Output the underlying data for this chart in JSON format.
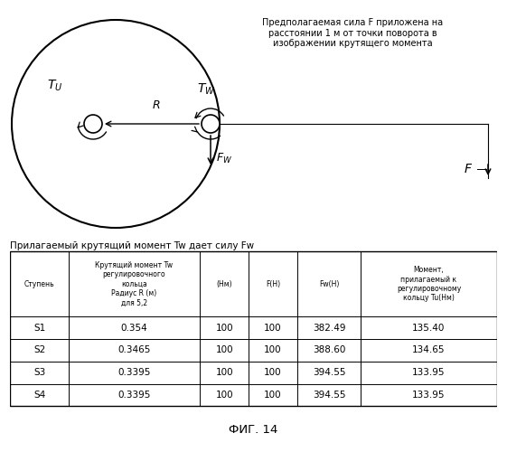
{
  "title_annotation": "Предполагаемая сила F приложена на\nрасстоянии 1 м от точки поворота в\nизображении крутящего момента",
  "table_title": "Прилагаемый крутящий момент Tw дает силу Fw",
  "col_headers": [
    "Ступень",
    "Крутящий момент Tw\nрегулировочного\nкольца\nРадиус R (м)\nдля 5,2",
    "(Нм)",
    "F(Н)",
    "Fw(Н)",
    "Момент,\nприлагаемый к\nрегулировочному\nкольцу Tu(Нм)"
  ],
  "rows": [
    [
      "S1",
      "0.354",
      "100",
      "100",
      "382.49",
      "135.40"
    ],
    [
      "S2",
      "0.3465",
      "100",
      "100",
      "388.60",
      "134.65"
    ],
    [
      "S3",
      "0.3395",
      "100",
      "100",
      "394.55",
      "133.95"
    ],
    [
      "S4",
      "0.3395",
      "100",
      "100",
      "394.55",
      "133.95"
    ]
  ],
  "fig_label": "ФИГ. 14",
  "bg_color": "#ffffff",
  "text_color": "#000000",
  "circle_color": "#000000",
  "line_color": "#000000"
}
